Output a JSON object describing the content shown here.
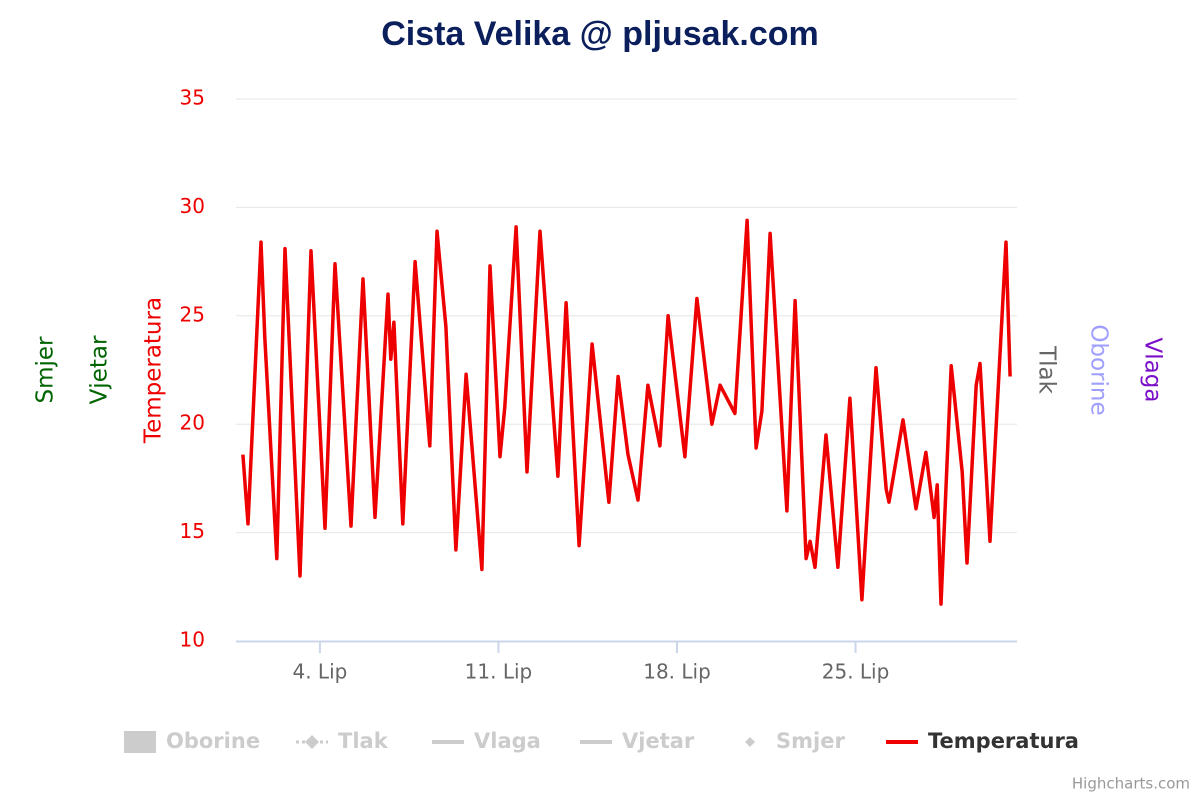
{
  "chart_data": {
    "type": "line",
    "title": "Cista Velika @ pljusak.com",
    "credits": "Highcharts.com",
    "x": [
      0.98,
      1.18,
      1.69,
      1.84,
      2.31,
      2.63,
      3.22,
      3.65,
      4.2,
      4.59,
      5.22,
      5.69,
      6.16,
      6.67,
      6.78,
      6.9,
      7.25,
      7.73,
      8.31,
      8.59,
      8.94,
      9.33,
      9.73,
      10.35,
      10.67,
      11.06,
      11.25,
      11.69,
      12.12,
      12.63,
      13.33,
      13.65,
      14.16,
      14.67,
      15.33,
      15.69,
      16.08,
      16.47,
      16.86,
      17.33,
      17.65,
      18.31,
      18.78,
      19.37,
      19.69,
      20.27,
      20.75,
      21.1,
      21.33,
      21.65,
      22.31,
      22.63,
      23.06,
      23.22,
      23.41,
      23.84,
      24.31,
      24.78,
      25.25,
      25.8,
      26.2,
      26.31,
      26.86,
      27.37,
      27.76,
      28.08,
      28.2,
      28.35,
      28.75,
      29.18,
      29.37,
      29.73,
      29.88,
      30.27,
      30.9,
      31.06
    ],
    "xlim": [
      0.71,
      31.33
    ],
    "xticks": [
      {
        "value": 4,
        "label": "4. Lip"
      },
      {
        "value": 11,
        "label": "11. Lip"
      },
      {
        "value": 18,
        "label": "18. Lip"
      },
      {
        "value": 25,
        "label": "25. Lip"
      }
    ],
    "ylim": [
      10,
      35
    ],
    "yticks": [
      10,
      15,
      20,
      25,
      30,
      35
    ],
    "grid": true,
    "axis_titles": [
      {
        "name": "Smjer",
        "color": "#006400",
        "side": "left"
      },
      {
        "name": "Vjetar",
        "color": "#006400",
        "side": "left"
      },
      {
        "name": "Temperatura",
        "color": "#ee0000",
        "side": "left"
      },
      {
        "name": "Tlak",
        "color": "#666666",
        "side": "right"
      },
      {
        "name": "Oborine",
        "color": "#9f9fff",
        "side": "right"
      },
      {
        "name": "Vlaga",
        "color": "#7b10c8",
        "side": "right"
      }
    ],
    "series": [
      {
        "name": "Oborine",
        "color": "#cccccc",
        "symbol": "rect",
        "visible": false
      },
      {
        "name": "Tlak",
        "color": "#cccccc",
        "symbol": "dashdot",
        "visible": false
      },
      {
        "name": "Vlaga",
        "color": "#cccccc",
        "symbol": "line",
        "visible": false
      },
      {
        "name": "Vjetar",
        "color": "#cccccc",
        "symbol": "line",
        "visible": false
      },
      {
        "name": "Smjer",
        "color": "#cccccc",
        "symbol": "diamond",
        "visible": false
      },
      {
        "name": "Temperatura",
        "color": "#ee0000",
        "symbol": "line",
        "visible": true,
        "values": [
          18.6,
          15.4,
          28.4,
          24,
          13.8,
          28.1,
          13,
          28,
          15.2,
          27.4,
          15.3,
          26.7,
          15.7,
          26,
          23,
          24.7,
          15.4,
          27.5,
          19,
          28.9,
          24.5,
          14.2,
          22.3,
          13.3,
          27.3,
          18.5,
          20.8,
          29.1,
          17.8,
          28.9,
          17.6,
          25.6,
          14.4,
          23.7,
          16.4,
          22.2,
          18.6,
          16.5,
          21.8,
          19,
          25,
          18.5,
          25.8,
          20,
          21.8,
          20.5,
          29.4,
          18.9,
          20.6,
          28.8,
          16,
          25.7,
          13.8,
          14.6,
          13.4,
          19.5,
          13.4,
          21.2,
          11.9,
          22.6,
          17,
          16.4,
          20.2,
          16.1,
          18.7,
          15.7,
          17.2,
          11.7,
          22.7,
          17.8,
          13.6,
          21.8,
          22.8,
          14.6,
          28.4,
          22.2
        ]
      }
    ]
  }
}
